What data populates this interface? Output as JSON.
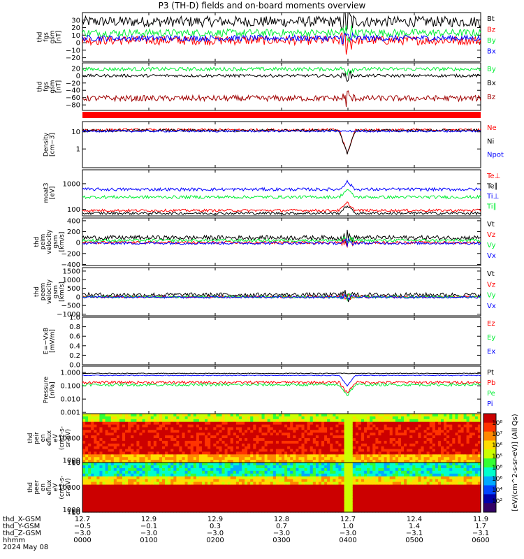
{
  "title": "P3 (TH-D) fields and on-board moments overview",
  "colors": {
    "black": "#000000",
    "red": "#ff0000",
    "green": "#00ee33",
    "blue": "#0000ff",
    "darkred": "#a00000",
    "bg": "#ffffff"
  },
  "chart_data": [
    {
      "type": "line",
      "ylabel": [
        "thd",
        "fgs",
        "gsm",
        "[nT]"
      ],
      "ylim": [
        -25,
        40
      ],
      "ticks": [
        "30",
        "20",
        "10",
        "0",
        "−10",
        "−20"
      ],
      "tick_values": [
        30,
        20,
        10,
        0,
        -10,
        -20
      ],
      "series": [
        {
          "name": "Bt",
          "color": "#000000",
          "level": 28,
          "noise": 7
        },
        {
          "name": "Bz",
          "color": "#ff0000",
          "level": 3,
          "noise": 6
        },
        {
          "name": "By",
          "color": "#00ee33",
          "level": 13,
          "noise": 5
        },
        {
          "name": "Bx",
          "color": "#0000ff",
          "level": 6,
          "noise": 4
        }
      ]
    },
    {
      "type": "line",
      "ylabel": [
        "thd",
        "fgs",
        "gsm",
        "[nT]"
      ],
      "ylim": [
        -95,
        35
      ],
      "ticks": [
        "20",
        "0",
        "−20",
        "−40",
        "−60",
        "−80"
      ],
      "tick_values": [
        20,
        0,
        -20,
        -40,
        -60,
        -80
      ],
      "series": [
        {
          "name": "By",
          "color": "#00ee33",
          "level": 18,
          "noise": 5
        },
        {
          "name": "Bx",
          "color": "#000000",
          "level": 0,
          "noise": 4
        },
        {
          "name": "Bz",
          "color": "#a00000",
          "level": -62,
          "noise": 8
        }
      ]
    },
    {
      "type": "line",
      "scale": "log",
      "ylabel": [
        "Density",
        "[cm−3]"
      ],
      "ylim": [
        0.08,
        40
      ],
      "ticks": [
        "10",
        "1"
      ],
      "tick_values": [
        10,
        1
      ],
      "series": [
        {
          "name": "Ne",
          "color": "#ff0000",
          "level": 13,
          "noise": 0.08
        },
        {
          "name": "Ni",
          "color": "#000000",
          "level": 12,
          "noise": 0.08
        },
        {
          "name": "Npot",
          "color": "#0000ff",
          "level": 11,
          "noise": 0.06
        }
      ]
    },
    {
      "type": "line",
      "scale": "log",
      "ylabel": [
        "moat3",
        "[eV]"
      ],
      "ylim": [
        55,
        3500
      ],
      "ticks": [
        "1000",
        "100"
      ],
      "tick_values": [
        1000,
        100
      ],
      "series": [
        {
          "name": "Te⊥",
          "color": "#ff0000",
          "level": 90,
          "noise": 0.05
        },
        {
          "name": "Te∥",
          "color": "#000000",
          "level": 70,
          "noise": 0.05
        },
        {
          "name": "Ti⊥",
          "color": "#0000ff",
          "level": 600,
          "noise": 0.06
        },
        {
          "name": "Ti∥",
          "color": "#00ee33",
          "level": 300,
          "noise": 0.06
        }
      ]
    },
    {
      "type": "line",
      "ylabel": [
        "thd",
        "peim",
        "velocity",
        "gsm",
        "[km/s]"
      ],
      "ylim": [
        -420,
        450
      ],
      "ticks": [
        "400",
        "200",
        "0",
        "−200",
        "−400"
      ],
      "tick_values": [
        400,
        200,
        0,
        -200,
        -400
      ],
      "series": [
        {
          "name": "Vt",
          "color": "#000000",
          "level": 90,
          "noise": 40
        },
        {
          "name": "Vz",
          "color": "#ff0000",
          "level": 0,
          "noise": 25
        },
        {
          "name": "Vy",
          "color": "#00ee33",
          "level": 40,
          "noise": 25
        },
        {
          "name": "Vx",
          "color": "#0000ff",
          "level": -10,
          "noise": 25
        }
      ]
    },
    {
      "type": "line",
      "ylabel": [
        "thd",
        "peem",
        "velocity",
        "gsm",
        "[km/s]"
      ],
      "ylim": [
        -1100,
        1700
      ],
      "ticks": [
        "1500",
        "1000",
        "500",
        "0",
        "−500",
        "−1000"
      ],
      "tick_values": [
        1500,
        1000,
        500,
        0,
        -500,
        -1000
      ],
      "series": [
        {
          "name": "Vt",
          "color": "#000000",
          "level": 120,
          "noise": 120
        },
        {
          "name": "Vz",
          "color": "#ff0000",
          "level": 0,
          "noise": 60
        },
        {
          "name": "Vy",
          "color": "#00ee33",
          "level": 0,
          "noise": 60
        },
        {
          "name": "Vx",
          "color": "#0000ff",
          "level": -20,
          "noise": 60
        }
      ]
    },
    {
      "type": "line",
      "ylabel": [
        "E=−VxB",
        "[mV/m]"
      ],
      "ylim": [
        0,
        1
      ],
      "ticks": [
        "1.0",
        "0.8",
        "0.6",
        "0.4",
        "0.2",
        "0.0"
      ],
      "tick_values": [
        1.0,
        0.8,
        0.6,
        0.4,
        0.2,
        0.0
      ],
      "empty": true,
      "series": [
        {
          "name": "Ez",
          "color": "#ff0000"
        },
        {
          "name": "Ey",
          "color": "#00ee33"
        },
        {
          "name": "Ex",
          "color": "#0000ff"
        }
      ]
    },
    {
      "type": "line",
      "scale": "log",
      "ylabel": [
        "Pressure",
        "[nPa]"
      ],
      "ylim": [
        0.0008,
        3
      ],
      "ticks": [
        "1.000",
        "0.100",
        "0.010",
        "0.001"
      ],
      "tick_values": [
        1,
        0.1,
        0.01,
        0.001
      ],
      "series": [
        {
          "name": "Pt",
          "color": "#000000",
          "level": 0.85,
          "noise": 0.03
        },
        {
          "name": "Pb",
          "color": "#ff0000",
          "level": 0.18,
          "noise": 0.1
        },
        {
          "name": "Pe",
          "color": "#00ee33",
          "level": 0.12,
          "noise": 0.1
        },
        {
          "name": "Pi",
          "color": "#0000ff",
          "level": 0.6,
          "noise": 0.03
        }
      ]
    },
    {
      "type": "heatmap",
      "ylabel": [
        "thd",
        "peir",
        "en",
        "eflux",
        "eV",
        "(cm2-s-",
        "sr-eV)"
      ],
      "ticks": [
        "10000",
        "1000",
        "100",
        "10"
      ],
      "tick_values": [
        10000,
        1000,
        100,
        10
      ],
      "ylim": [
        6,
        20000
      ]
    },
    {
      "type": "heatmap",
      "ylabel": [
        "thd",
        "peer",
        "en",
        "eflux",
        "eV",
        "(cm2-s-",
        "sr-eV)"
      ],
      "ticks": [
        "10000",
        "1000",
        "100",
        "10"
      ],
      "tick_values": [
        10000,
        1000,
        100,
        10
      ],
      "ylim": [
        6,
        20000
      ]
    }
  ],
  "colorbar": {
    "label": "[eV/(cm^2-s-sr-eV)] (All Qs)",
    "ticks_top": [
      "10⁸",
      "10⁷",
      "10⁶",
      "10⁵"
    ],
    "ticks_bottom": [
      "10⁸",
      "10⁶",
      "10⁴",
      "10²"
    ]
  },
  "x_axis": {
    "rows": [
      {
        "label": "thd_X-GSM",
        "values": [
          "12.7",
          "12.9",
          "12.9",
          "12.8",
          "12.7",
          "12.4",
          "11.9"
        ]
      },
      {
        "label": "thd_Y-GSM",
        "values": [
          "−0.5",
          "−0.1",
          "0.3",
          "0.7",
          "1.0",
          "1.4",
          "1.7"
        ]
      },
      {
        "label": "thd_Z-GSM",
        "values": [
          "−3.0",
          "−3.0",
          "−3.0",
          "−3.0",
          "−3.0",
          "−3.1",
          "−3.1"
        ]
      },
      {
        "label": "hhmm",
        "values": [
          "0000",
          "0100",
          "0200",
          "0300",
          "0400",
          "0500",
          "0600"
        ]
      }
    ],
    "date": "2024 May 08"
  }
}
